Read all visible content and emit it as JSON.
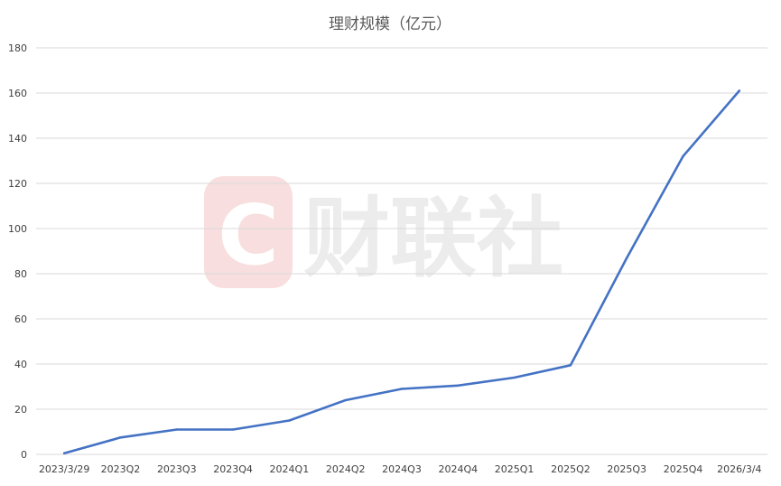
{
  "chart_data": {
    "type": "line",
    "title": "理财规模（亿元）",
    "categories": [
      "2023/3/29",
      "2023Q2",
      "2023Q3",
      "2023Q4",
      "2024Q1",
      "2024Q2",
      "2024Q3",
      "2024Q4",
      "2025Q1",
      "2025Q2",
      "2025Q3",
      "2025Q4",
      "2026/3/4"
    ],
    "series": [
      {
        "values": [
          0.5,
          7.5,
          11,
          11,
          15,
          24,
          29,
          30.5,
          34,
          39.5,
          87,
          132,
          161
        ]
      }
    ],
    "yticks": [
      "0",
      "20",
      "40",
      "60",
      "80",
      "100",
      "120",
      "140",
      "160",
      "180"
    ],
    "ylim": [
      0,
      180
    ],
    "grid": true,
    "legend": "none",
    "series_color": "#4472c4"
  },
  "watermark": {
    "logo_letter": "C",
    "text": "财联社",
    "color": "#f4cccc"
  }
}
